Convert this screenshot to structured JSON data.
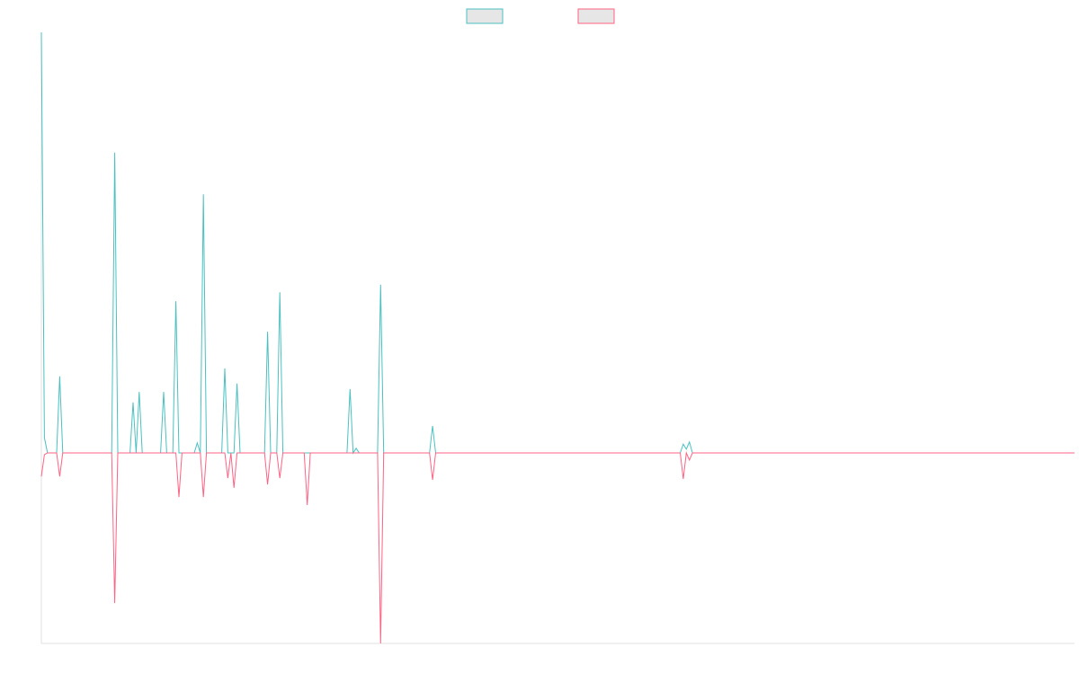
{
  "chart_data": {
    "type": "line",
    "x": [
      0,
      1,
      2,
      5,
      6,
      7,
      23,
      24,
      25,
      29,
      30,
      31,
      32,
      33,
      39,
      40,
      41,
      43,
      44,
      45,
      46,
      50,
      51,
      52,
      53,
      54,
      59,
      60,
      61,
      62,
      63,
      64,
      65,
      73,
      74,
      75,
      77,
      78,
      79,
      86,
      87,
      88,
      100,
      101,
      102,
      103,
      104,
      110,
      111,
      112,
      127,
      128,
      129,
      209,
      210,
      211,
      212,
      213,
      338
    ],
    "xlim": [
      0,
      338
    ],
    "ylim": [
      -45.3,
      100
    ],
    "legend": "top",
    "series": [
      {
        "color": "#4bc0c0",
        "values": [
          100,
          3.6,
          0,
          0,
          18.2,
          0,
          0,
          71.4,
          0,
          0,
          12,
          0,
          14.5,
          0,
          0,
          14.5,
          0,
          0,
          36.1,
          0,
          0,
          0,
          2.4,
          0,
          61.5,
          0,
          0,
          20.1,
          0,
          0,
          0,
          16.5,
          0,
          0,
          28.8,
          0,
          0,
          38.2,
          0,
          0,
          0,
          0,
          0,
          15.2,
          0,
          1.1,
          0,
          0,
          40,
          0,
          0,
          6.4,
          0,
          0,
          2.1,
          0.9,
          2.6,
          0,
          0
        ]
      },
      {
        "color": "#ff6384",
        "values": [
          -5.6,
          -0.4,
          0,
          0,
          -5.6,
          0,
          0,
          -35.7,
          0,
          0,
          0,
          0,
          0,
          0,
          0,
          0,
          0,
          0,
          0,
          -10.5,
          0,
          0,
          0,
          0,
          -10.5,
          0,
          0,
          0,
          -6,
          0,
          -8.3,
          0,
          0,
          0,
          -7.5,
          0,
          0,
          -6,
          0,
          0,
          -12.4,
          0,
          0,
          0,
          0,
          0,
          0,
          0,
          -45.3,
          0,
          0,
          -6.4,
          0,
          0,
          -6.2,
          0,
          -1.7,
          0,
          0
        ]
      }
    ]
  }
}
